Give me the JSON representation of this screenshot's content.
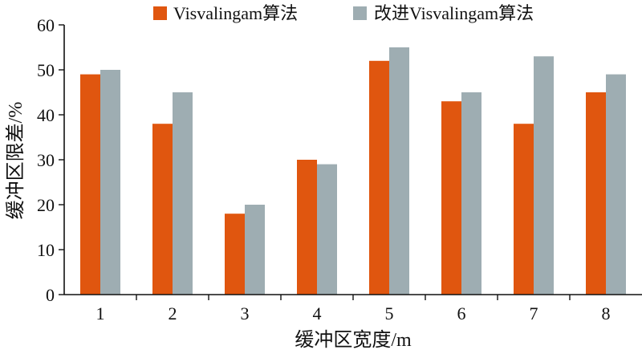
{
  "chart_data": {
    "type": "bar",
    "categories": [
      "1",
      "2",
      "3",
      "4",
      "5",
      "6",
      "7",
      "8"
    ],
    "series": [
      {
        "name": "Visvalingam算法",
        "color": "#e0560f",
        "values": [
          49,
          38,
          18,
          30,
          52,
          43,
          38,
          45
        ]
      },
      {
        "name": "改进Visvalingam算法",
        "color": "#9eadb2",
        "values": [
          50,
          45,
          20,
          29,
          55,
          45,
          53,
          49
        ]
      }
    ],
    "xlabel": "缓冲区宽度/m",
    "ylabel": "缓冲区限差/%",
    "ylim": [
      0,
      60
    ],
    "yticks": [
      0,
      10,
      20,
      30,
      40,
      50,
      60
    ],
    "grid": false,
    "legend_position": "top"
  }
}
